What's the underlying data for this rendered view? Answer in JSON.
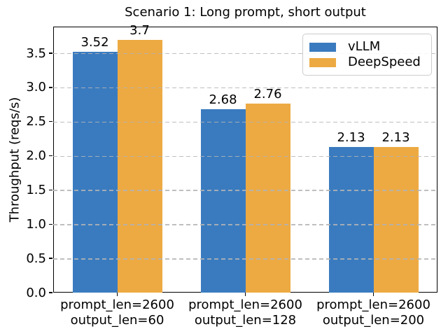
{
  "title": "Scenario 1: Long prompt, short output",
  "colors": {
    "vllm_blue": "#3a7bbf",
    "deepspeed_orange": "#edaa42",
    "grid": "#b4b4b4",
    "spine": "#000000",
    "legend_border": "#cccccc"
  },
  "chart_data": {
    "type": "bar",
    "title": "Scenario 1: Long prompt, short output",
    "xlabel": "",
    "ylabel": "Throughput (reqs/s)",
    "categories": [
      [
        "prompt_len=2600",
        "output_len=60"
      ],
      [
        "prompt_len=2600",
        "output_len=128"
      ],
      [
        "prompt_len=2600",
        "output_len=200"
      ]
    ],
    "series": [
      {
        "name": "vLLM",
        "color": "#3a7bbf",
        "values": [
          3.52,
          2.68,
          2.13
        ],
        "labels": [
          "3.52",
          "2.68",
          "2.13"
        ]
      },
      {
        "name": "DeepSpeed",
        "color": "#edaa42",
        "values": [
          3.7,
          2.76,
          2.13
        ],
        "labels": [
          "3.7",
          "2.76",
          "2.13"
        ]
      }
    ],
    "ylim": [
      0,
      3.89
    ],
    "yticks": [
      0.0,
      0.5,
      1.0,
      1.5,
      2.0,
      2.5,
      3.0,
      3.5
    ],
    "ytick_labels": [
      "0.0",
      "0.5",
      "1.0",
      "1.5",
      "2.0",
      "2.5",
      "3.0",
      "3.5"
    ],
    "grid": "horizontal-dashed",
    "grid_above_bars": true,
    "legend_position": "upper right",
    "legend_labels": [
      "vLLM",
      "DeepSpeed"
    ]
  }
}
